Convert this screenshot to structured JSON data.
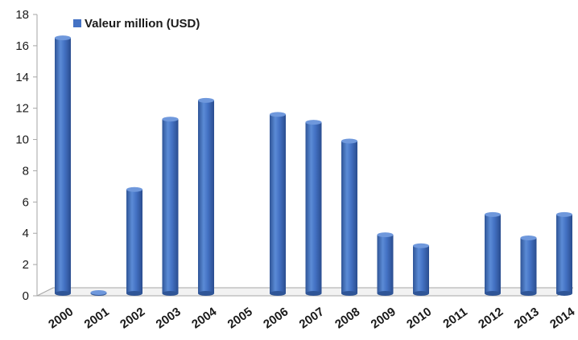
{
  "chart_data": {
    "type": "bar",
    "categories": [
      "2000",
      "2001",
      "2002",
      "2003",
      "2004",
      "2005",
      "2006",
      "2007",
      "2008",
      "2009",
      "2010",
      "2011",
      "2012",
      "2013",
      "2014"
    ],
    "series": [
      {
        "name": "Valeur million (USD)",
        "color": "#4472C4",
        "values": [
          16.4,
          0.05,
          6.7,
          11.2,
          12.4,
          0,
          11.5,
          11.0,
          9.8,
          3.8,
          3.1,
          0,
          5.1,
          3.6,
          5.1
        ]
      }
    ],
    "ylim": [
      0,
      18
    ],
    "yticks": [
      0,
      2,
      4,
      6,
      8,
      10,
      12,
      14,
      16,
      18
    ],
    "legend_position": "top-left",
    "grid": false,
    "xlabel": "",
    "ylabel": "",
    "title": ""
  }
}
